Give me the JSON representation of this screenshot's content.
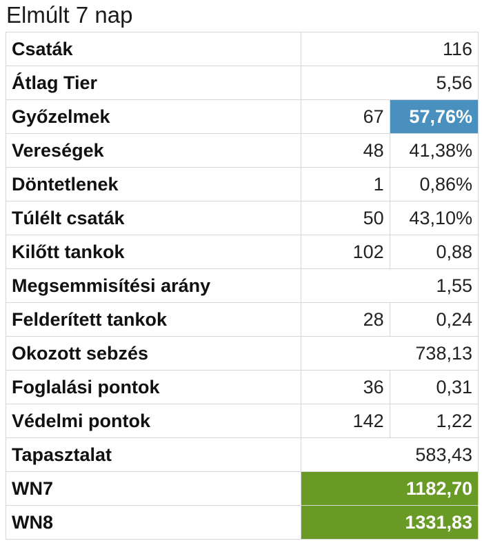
{
  "title": "Elmúlt 7 nap",
  "colors": {
    "highlight_blue": "#4a90bf",
    "highlight_green": "#6a9a26"
  },
  "rows": [
    {
      "label": "Csaták",
      "count": "",
      "value": "116"
    },
    {
      "label": "Átlag Tier",
      "count": "",
      "value": "5,56"
    },
    {
      "label": "Győzelmek",
      "count": "67",
      "value": "57,76%"
    },
    {
      "label": "Vereségek",
      "count": "48",
      "value": "41,38%"
    },
    {
      "label": "Döntetlenek",
      "count": "1",
      "value": "0,86%"
    },
    {
      "label": "Túlélt csaták",
      "count": "50",
      "value": "43,10%"
    },
    {
      "label": "Kilőtt tankok",
      "count": "102",
      "value": "0,88"
    },
    {
      "label": "Megsemmisítési arány",
      "count": "",
      "value": "1,55"
    },
    {
      "label": "Felderített tankok",
      "count": "28",
      "value": "0,24"
    },
    {
      "label": "Okozott sebzés",
      "count": "",
      "value": "738,13"
    },
    {
      "label": "Foglalási pontok",
      "count": "36",
      "value": "0,31"
    },
    {
      "label": "Védelmi pontok",
      "count": "142",
      "value": "1,22"
    },
    {
      "label": "Tapasztalat",
      "count": "",
      "value": "583,43"
    },
    {
      "label": "WN7",
      "count": "",
      "value": "1182,70"
    },
    {
      "label": "WN8",
      "count": "",
      "value": "1331,83"
    }
  ]
}
